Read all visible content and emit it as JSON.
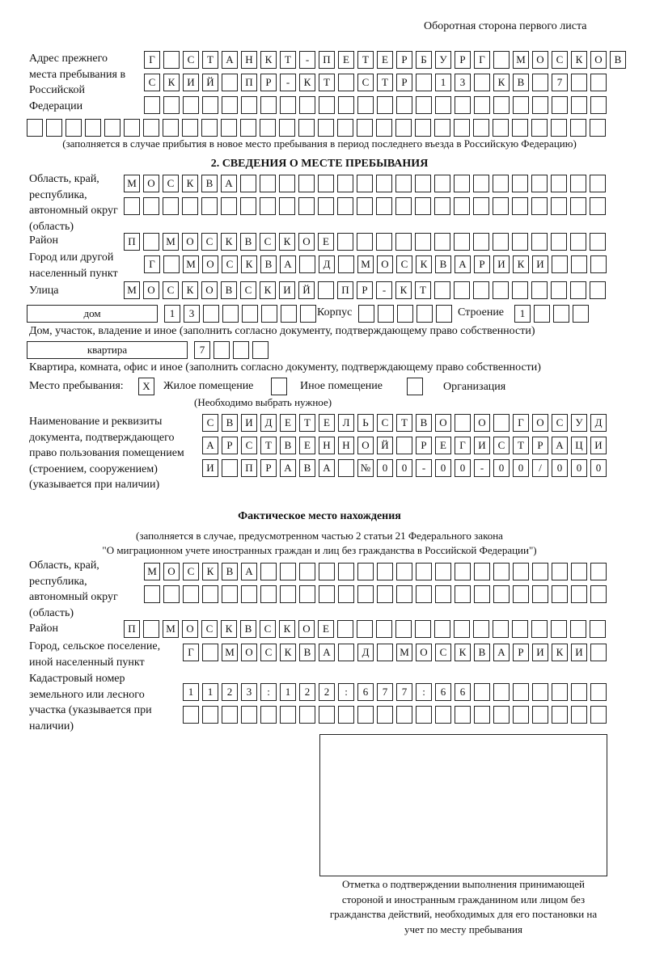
{
  "header": "Оборотная сторона первого листа",
  "prev_address": {
    "label": "Адрес прежнего места пребывания в Российской Федерации",
    "rows": [
      "Г СТАНКТ-ПЕТЕРБУРГ МОСКОВ",
      "СКИЙ ПР-КТ СТР 13 КВ 7  ",
      "                        ",
      "                              "
    ],
    "note": "(заполняется в случае прибытия в новое место пребывания в период последнего въезда в Российскую Федерацию)"
  },
  "section2": {
    "title": "2. СВЕДЕНИЯ О МЕСТЕ ПРЕБЫВАНИЯ",
    "region_label": "Область, край, республика, автономный округ (область)",
    "region_rows": [
      "МОСКВА                   ",
      "                         "
    ],
    "district_label": "Район",
    "district_row": "П МОСКВСКОЕ              ",
    "city_label": "Город или другой населенный пункт",
    "city_row": "Г МОСКВА Д МОСКВАРИКИ   ",
    "street_label": "Улица",
    "street_row": "МОСКОВСКИЙ ПР-КТ         ",
    "house_type": "дом",
    "house_row": "13      ",
    "korpus_label": "Корпус",
    "korpus_row": "     ",
    "building_label": "Строение",
    "building_row": "1   ",
    "house_note": "Дом, участок, владение и иное (заполнить согласно документу, подтверждающему право собственности)",
    "flat_type": "квартира",
    "flat_row": "7   ",
    "flat_note": "Квартира, комната, офис и иное (заполнить согласно документу, подтверждающему право собственности)",
    "stay_label": "Место пребывания:",
    "stay_options": [
      {
        "label": "Жилое помещение",
        "mark": "X"
      },
      {
        "label": "Иное помещение",
        "mark": ""
      },
      {
        "label": "Организация",
        "mark": ""
      }
    ],
    "stay_note": "(Необходимо выбрать нужное)",
    "doc_label": "Наименование и реквизиты документа, подтверждающего право пользования помещением (строением, сооружением) (указывается при наличии)",
    "doc_rows": [
      "СВИДЕТЕЛЬСТВО О ГОСУД",
      "АРСТВЕННОЙ РЕГИСТРАЦИ",
      "И ПРАВА №00-00-00/000"
    ]
  },
  "actual": {
    "title": "Фактическое место нахождения",
    "note1": "(заполняется в случае, предусмотренном частью 2 статьи 21 Федерального закона",
    "note2": "\"О миграционном учете иностранных граждан и лиц без гражданства в Российской Федерации\")",
    "region_label": "Область, край, республика, автономный округ (область)",
    "region_rows": [
      "МОСКВА                  ",
      "                        "
    ],
    "district_label": "Район",
    "district_row": "П МОСКВСКОЕ              ",
    "city_label": "Город, сельское поселение, иной населенный пункт",
    "city_row": "Г МОСКВА Д МОСКВАРИКИ ",
    "cadastre_label": "Кадастровый номер земельного или лесного участка (указывается при наличии)",
    "cadastre_rows": [
      "1123:122:677:66       ",
      "                      "
    ]
  },
  "stamp_caption": "Отметка о подтверждении выполнения принимающей стороной и иностранным гражданином или лицом без гражданства действий, необходимых для его постановки на учет по месту пребывания"
}
